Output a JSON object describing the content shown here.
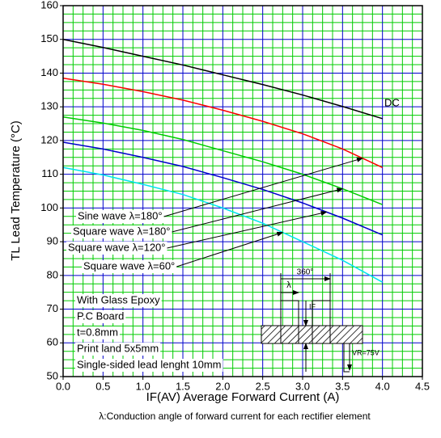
{
  "chart_data": {
    "type": "line",
    "x_label": "IF(AV)  Average Forward Current    (A)",
    "y_label": "TL    Lead Temperature    (°C)",
    "footnote": "λ:Conduction angle of forward current for each rectifier element",
    "x": [
      0,
      0.5,
      1,
      1.5,
      2,
      2.5,
      3,
      3.5,
      4
    ],
    "series": [
      {
        "name": "DC",
        "color": "#000000",
        "values": [
          150,
          147.6,
          145,
          142.4,
          139.5,
          136.6,
          133.5,
          130.1,
          126.5
        ]
      },
      {
        "name": "Sine wave λ=180°",
        "color": "#ff0000",
        "values": [
          138.5,
          136.7,
          134.5,
          132,
          129,
          125.7,
          122,
          117.5,
          112
        ]
      },
      {
        "name": "Square wave λ=180°",
        "color": "#00cc00",
        "values": [
          127,
          125.2,
          123,
          120.3,
          117,
          113.7,
          110,
          105.7,
          101
        ]
      },
      {
        "name": "Square wave λ=120°",
        "color": "#0000cc",
        "values": [
          119.5,
          117.5,
          115,
          112.3,
          109,
          105.5,
          101.5,
          97,
          92
        ]
      },
      {
        "name": "Square wave λ=60°",
        "color": "#00e5ee",
        "values": [
          112,
          109.8,
          107,
          104,
          100,
          95.5,
          90,
          84.5,
          78
        ]
      }
    ],
    "xlim": [
      0,
      4.5
    ],
    "ylim": [
      50,
      160
    ],
    "xticks": [
      {
        "value": 0,
        "label": "0.0"
      },
      0.5,
      {
        "value": 1,
        "label": "1.0"
      },
      1.5,
      {
        "value": 2,
        "label": "2.0"
      },
      2.5,
      {
        "value": 3,
        "label": "3.0"
      },
      3.5,
      {
        "value": 4,
        "label": "4.0"
      },
      4.5
    ],
    "yticks": [
      50,
      60,
      70,
      80,
      90,
      100,
      110,
      120,
      130,
      140,
      150,
      160
    ],
    "grid": true,
    "major_grid_color": "#0000cc",
    "minor_grid_color": "#00cc00",
    "notes": [
      "With Glass Epoxy",
      "P.C Board",
      "t=0.8mm",
      "Print land 5x5mm",
      "Single-sided lead lenght 10mm"
    ],
    "diagram": {
      "period": "360°",
      "angle": "λ",
      "current": "IF",
      "voltage": "VR=75V"
    }
  }
}
